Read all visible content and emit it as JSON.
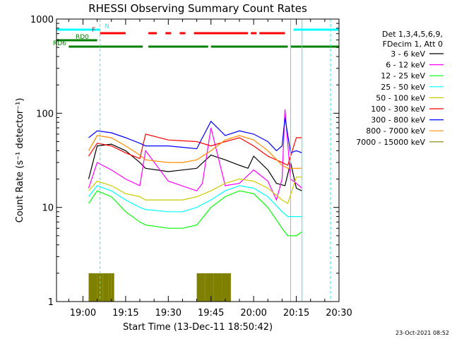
{
  "chart_data": {
    "type": "line",
    "title": "RHESSI Observing Summary Count Rates",
    "xlabel": "Start Time (13-Dec-11 18:50:42)",
    "ylabel": "Count Rate (s⁻¹ detector⁻¹)",
    "y_scale": "log",
    "ylim": [
      1,
      1000
    ],
    "xlim": [
      "18:50:42",
      "20:30:00"
    ],
    "x_ticks": [
      "19:00",
      "19:15",
      "19:30",
      "19:45",
      "20:00",
      "20:15",
      "20:30"
    ],
    "y_ticks": [
      "1",
      "10",
      "100",
      "1000"
    ],
    "grid": false,
    "legend_position": "right",
    "legend_header": [
      "Det 1,3,4,5,6,9,",
      "FDecim 1, Att 0"
    ],
    "series": [
      {
        "name": "3 - 6 keV",
        "color": "#000000",
        "x": [
          "19:02",
          "19:05",
          "19:10",
          "19:15",
          "19:20",
          "19:22",
          "19:30",
          "19:40",
          "19:45",
          "19:50",
          "19:55",
          "19:58",
          "20:00",
          "20:05",
          "20:08",
          "20:11",
          "20:13",
          "20:15",
          "20:17"
        ],
        "y": [
          20,
          45,
          47,
          40,
          30,
          26,
          24,
          26,
          36,
          32,
          28,
          26,
          35,
          25,
          18,
          17,
          30,
          16,
          15
        ]
      },
      {
        "name": "6 - 12 keV",
        "color": "#ff00ff",
        "x": [
          "19:02",
          "19:05",
          "19:10",
          "19:15",
          "19:20",
          "19:22",
          "19:30",
          "19:40",
          "19:42",
          "19:45",
          "19:50",
          "19:55",
          "20:00",
          "20:05",
          "20:08",
          "20:10",
          "20:11",
          "20:13",
          "20:15",
          "20:17"
        ],
        "y": [
          16,
          30,
          25,
          20,
          17,
          40,
          19,
          15,
          18,
          70,
          17,
          18,
          25,
          19,
          12,
          20,
          110,
          20,
          18,
          16
        ]
      },
      {
        "name": "12 - 25 keV",
        "color": "#00ff00",
        "x": [
          "19:02",
          "19:05",
          "19:10",
          "19:15",
          "19:20",
          "19:22",
          "19:30",
          "19:35",
          "19:40",
          "19:45",
          "19:50",
          "19:55",
          "20:00",
          "20:05",
          "20:10",
          "20:12",
          "20:15",
          "20:17"
        ],
        "y": [
          11,
          15,
          13,
          9,
          7,
          6.5,
          6,
          6,
          6.5,
          10,
          13,
          15,
          14,
          10,
          6,
          5,
          5,
          5.5
        ]
      },
      {
        "name": "25 - 50 keV",
        "color": "#00ffff",
        "x": [
          "19:02",
          "19:05",
          "19:10",
          "19:15",
          "19:20",
          "19:22",
          "19:30",
          "19:35",
          "19:40",
          "19:45",
          "19:50",
          "19:55",
          "20:00",
          "20:05",
          "20:10",
          "20:12",
          "20:15",
          "20:17"
        ],
        "y": [
          13,
          17,
          15,
          12,
          10,
          9.5,
          9,
          9,
          10,
          12,
          15,
          17,
          16,
          13,
          9,
          8,
          8,
          8
        ]
      },
      {
        "name": "50 - 100 keV",
        "color": "#cccc00",
        "x": [
          "19:02",
          "19:05",
          "19:10",
          "19:15",
          "19:20",
          "19:22",
          "19:30",
          "19:35",
          "19:40",
          "19:45",
          "19:50",
          "19:55",
          "20:00",
          "20:05",
          "20:10",
          "20:12",
          "20:15",
          "20:17"
        ],
        "y": [
          15,
          19,
          17,
          14,
          13,
          12,
          12,
          12,
          13,
          15,
          18,
          20,
          19,
          16,
          12,
          11,
          21,
          21
        ]
      },
      {
        "name": "100 - 300 keV",
        "color": "#ff0000",
        "x": [
          "19:02",
          "19:05",
          "19:10",
          "19:15",
          "19:20",
          "19:22",
          "19:30",
          "19:40",
          "19:45",
          "19:50",
          "19:55",
          "20:00",
          "20:05",
          "20:10",
          "20:12",
          "20:15",
          "20:17"
        ],
        "y": [
          35,
          48,
          45,
          38,
          33,
          60,
          52,
          50,
          45,
          50,
          55,
          45,
          35,
          30,
          28,
          55,
          55
        ]
      },
      {
        "name": "300 - 800 keV",
        "color": "#0000ff",
        "x": [
          "19:02",
          "19:05",
          "19:10",
          "19:15",
          "19:20",
          "19:22",
          "19:30",
          "19:40",
          "19:42",
          "19:45",
          "19:50",
          "19:55",
          "20:00",
          "20:05",
          "20:08",
          "20:10",
          "20:11",
          "20:13",
          "20:15",
          "20:17"
        ],
        "y": [
          55,
          65,
          62,
          55,
          48,
          45,
          45,
          42,
          55,
          82,
          58,
          65,
          60,
          50,
          40,
          45,
          90,
          38,
          40,
          38
        ]
      },
      {
        "name": "800 - 7000 keV",
        "color": "#ff8c00",
        "x": [
          "19:02",
          "19:05",
          "19:10",
          "19:15",
          "19:20",
          "19:22",
          "19:30",
          "19:35",
          "19:40",
          "19:45",
          "19:50",
          "19:55",
          "20:00",
          "20:05",
          "20:10",
          "20:12",
          "20:15",
          "20:17"
        ],
        "y": [
          40,
          58,
          55,
          45,
          36,
          32,
          30,
          30,
          32,
          40,
          52,
          58,
          52,
          40,
          28,
          26,
          26,
          26
        ]
      },
      {
        "name": "7000 - 15000 keV",
        "color": "#808000",
        "x": [
          "19:02",
          "19:03",
          "19:05",
          "19:07",
          "19:09",
          "19:10",
          "19:11",
          "19:40",
          "19:43",
          "19:46",
          "19:49",
          "19:52"
        ],
        "y": [
          2,
          2,
          2,
          2,
          2,
          2,
          2,
          2,
          2,
          2,
          2,
          2
        ]
      }
    ],
    "flags": [
      {
        "label": "N",
        "color": "#00ffff",
        "segments": [
          [
            "18:50:42",
            "19:06"
          ],
          [
            "20:14",
            "20:30"
          ]
        ]
      },
      {
        "label": "F",
        "color": "#ff0000",
        "segments": [
          [
            "19:06",
            "19:15"
          ],
          [
            "19:23",
            "19:26"
          ],
          [
            "19:29",
            "19:31"
          ],
          [
            "19:34",
            "19:36"
          ],
          [
            "19:39",
            "19:58"
          ],
          [
            "19:59",
            "20:01"
          ],
          [
            "20:02",
            "20:11"
          ]
        ]
      },
      {
        "label": "RD0",
        "color": "#008000",
        "segments": [
          [
            "18:50:42",
            "19:05"
          ]
        ]
      },
      {
        "label": "RD6",
        "color": "#008000",
        "segments": [
          [
            "18:55",
            "19:21"
          ],
          [
            "19:23",
            "19:44"
          ],
          [
            "19:45",
            "20:12"
          ],
          [
            "20:13",
            "20:30"
          ]
        ]
      }
    ]
  },
  "timestamp": "23-Oct-2021 08:52"
}
